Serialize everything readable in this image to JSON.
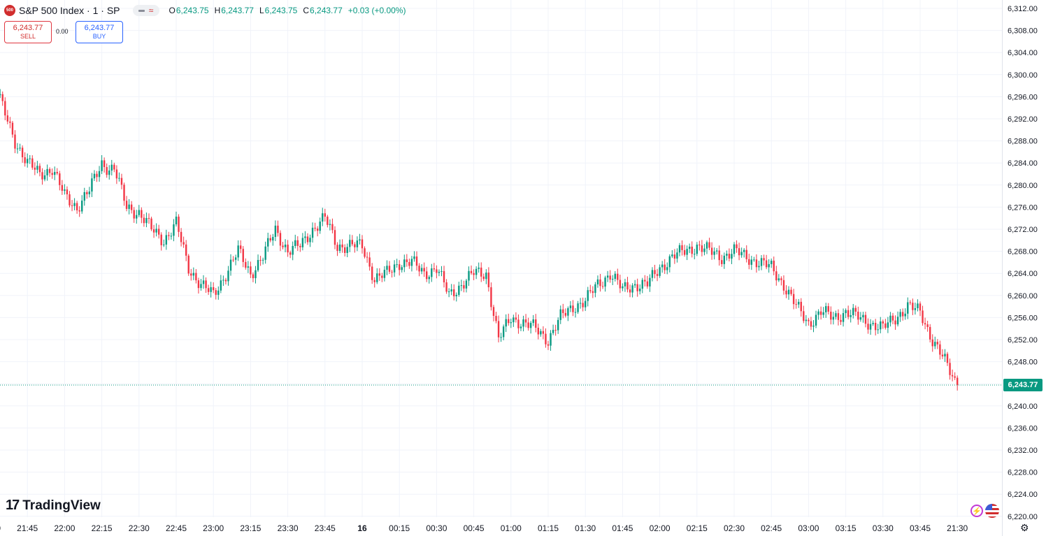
{
  "legend": {
    "symbol_badge": "500",
    "title": "S&P 500 Index · 1 · SP",
    "open_label": "O",
    "open": "6,243.75",
    "high_label": "H",
    "high": "6,243.77",
    "low_label": "L",
    "low": "6,243.75",
    "close_label": "C",
    "close": "6,243.77",
    "change": "+0.03 (+0.00%)"
  },
  "trade": {
    "sell_price": "6,243.77",
    "sell_label": "SELL",
    "spread": "0.00",
    "buy_price": "6,243.77",
    "buy_label": "BUY"
  },
  "brand": {
    "name": "TradingView"
  },
  "last_price": "6,243.77",
  "colors": {
    "up": "#089981",
    "down": "#f23645",
    "grid": "#f0f3fa",
    "last_price_line": "#089981"
  },
  "icons": [
    "tradingview-logo-icon",
    "flash-icon",
    "us-flag-icon",
    "gear-icon"
  ],
  "chart_data": {
    "type": "candlestick",
    "title": "S&P 500 Index",
    "interval": "1",
    "ylim": [
      6218,
      6314
    ],
    "y_ticks": [
      "6,312.00",
      "6,308.00",
      "6,304.00",
      "6,300.00",
      "6,296.00",
      "6,292.00",
      "6,288.00",
      "6,284.00",
      "6,280.00",
      "6,276.00",
      "6,272.00",
      "6,268.00",
      "6,264.00",
      "6,260.00",
      "6,256.00",
      "6,252.00",
      "6,248.00",
      "6,244.00",
      "6,240.00",
      "6,236.00",
      "6,232.00",
      "6,228.00",
      "6,224.00",
      "6,220.00"
    ],
    "x_ticks": [
      "21:30",
      "21:45",
      "22:00",
      "22:15",
      "22:30",
      "22:45",
      "23:00",
      "23:15",
      "23:30",
      "23:45",
      "16",
      "00:15",
      "00:30",
      "00:45",
      "01:00",
      "01:15",
      "01:30",
      "01:45",
      "02:00",
      "02:15",
      "02:30",
      "02:45",
      "03:00",
      "03:15",
      "03:30",
      "03:45",
      "21:30"
    ],
    "close_path": [
      {
        "t": "21:30",
        "v": 6301.0
      },
      {
        "t": "21:35",
        "v": 6294.0
      },
      {
        "t": "21:40",
        "v": 6288.0
      },
      {
        "t": "21:45",
        "v": 6284.0
      },
      {
        "t": "21:50",
        "v": 6282.0
      },
      {
        "t": "21:55",
        "v": 6283.0
      },
      {
        "t": "22:00",
        "v": 6278.0
      },
      {
        "t": "22:05",
        "v": 6276.0
      },
      {
        "t": "22:10",
        "v": 6279.0
      },
      {
        "t": "22:15",
        "v": 6284.0
      },
      {
        "t": "22:18",
        "v": 6283.0
      },
      {
        "t": "22:20",
        "v": 6283.0
      },
      {
        "t": "22:25",
        "v": 6276.0
      },
      {
        "t": "22:30",
        "v": 6275.0
      },
      {
        "t": "22:35",
        "v": 6272.0
      },
      {
        "t": "22:40",
        "v": 6270.0
      },
      {
        "t": "22:45",
        "v": 6273.0
      },
      {
        "t": "22:50",
        "v": 6265.0
      },
      {
        "t": "22:55",
        "v": 6262.0
      },
      {
        "t": "23:00",
        "v": 6260.0
      },
      {
        "t": "23:05",
        "v": 6264.0
      },
      {
        "t": "23:10",
        "v": 6268.0
      },
      {
        "t": "23:15",
        "v": 6264.0
      },
      {
        "t": "23:20",
        "v": 6267.0
      },
      {
        "t": "23:25",
        "v": 6272.0
      },
      {
        "t": "23:30",
        "v": 6268.0
      },
      {
        "t": "23:35",
        "v": 6269.0
      },
      {
        "t": "23:40",
        "v": 6272.0
      },
      {
        "t": "23:45",
        "v": 6274.0
      },
      {
        "t": "23:50",
        "v": 6269.0
      },
      {
        "t": "23:55",
        "v": 6269.0
      },
      {
        "t": "00:00",
        "v": 6269.0
      },
      {
        "t": "00:05",
        "v": 6263.0
      },
      {
        "t": "00:10",
        "v": 6264.0
      },
      {
        "t": "00:15",
        "v": 6266.0
      },
      {
        "t": "00:20",
        "v": 6266.0
      },
      {
        "t": "00:25",
        "v": 6264.0
      },
      {
        "t": "00:30",
        "v": 6265.0
      },
      {
        "t": "00:35",
        "v": 6260.0
      },
      {
        "t": "00:40",
        "v": 6262.0
      },
      {
        "t": "00:45",
        "v": 6264.0
      },
      {
        "t": "00:50",
        "v": 6264.0
      },
      {
        "t": "00:55",
        "v": 6252.0
      },
      {
        "t": "01:00",
        "v": 6256.0
      },
      {
        "t": "01:05",
        "v": 6255.0
      },
      {
        "t": "01:10",
        "v": 6254.0
      },
      {
        "t": "01:15",
        "v": 6252.0
      },
      {
        "t": "01:20",
        "v": 6256.0
      },
      {
        "t": "01:25",
        "v": 6258.0
      },
      {
        "t": "01:30",
        "v": 6259.0
      },
      {
        "t": "01:35",
        "v": 6262.0
      },
      {
        "t": "01:40",
        "v": 6264.0
      },
      {
        "t": "01:45",
        "v": 6261.0
      },
      {
        "t": "01:50",
        "v": 6262.0
      },
      {
        "t": "01:55",
        "v": 6262.0
      },
      {
        "t": "02:00",
        "v": 6265.0
      },
      {
        "t": "02:05",
        "v": 6267.0
      },
      {
        "t": "02:10",
        "v": 6268.0
      },
      {
        "t": "02:15",
        "v": 6269.0
      },
      {
        "t": "02:20",
        "v": 6268.0
      },
      {
        "t": "02:25",
        "v": 6267.0
      },
      {
        "t": "02:30",
        "v": 6268.0
      },
      {
        "t": "02:35",
        "v": 6267.0
      },
      {
        "t": "02:40",
        "v": 6266.0
      },
      {
        "t": "02:45",
        "v": 6265.0
      },
      {
        "t": "02:50",
        "v": 6262.0
      },
      {
        "t": "02:55",
        "v": 6258.0
      },
      {
        "t": "03:00",
        "v": 6255.0
      },
      {
        "t": "03:05",
        "v": 6257.0
      },
      {
        "t": "03:10",
        "v": 6256.0
      },
      {
        "t": "03:15",
        "v": 6257.0
      },
      {
        "t": "03:20",
        "v": 6256.0
      },
      {
        "t": "03:25",
        "v": 6255.0
      },
      {
        "t": "03:30",
        "v": 6254.0
      },
      {
        "t": "03:35",
        "v": 6256.0
      },
      {
        "t": "03:40",
        "v": 6258.0
      },
      {
        "t": "03:45",
        "v": 6257.0
      },
      {
        "t": "03:50",
        "v": 6252.0
      },
      {
        "t": "03:55",
        "v": 6248.0
      },
      {
        "t": "04:00",
        "v": 6243.8
      }
    ],
    "last_price": 6243.77
  }
}
